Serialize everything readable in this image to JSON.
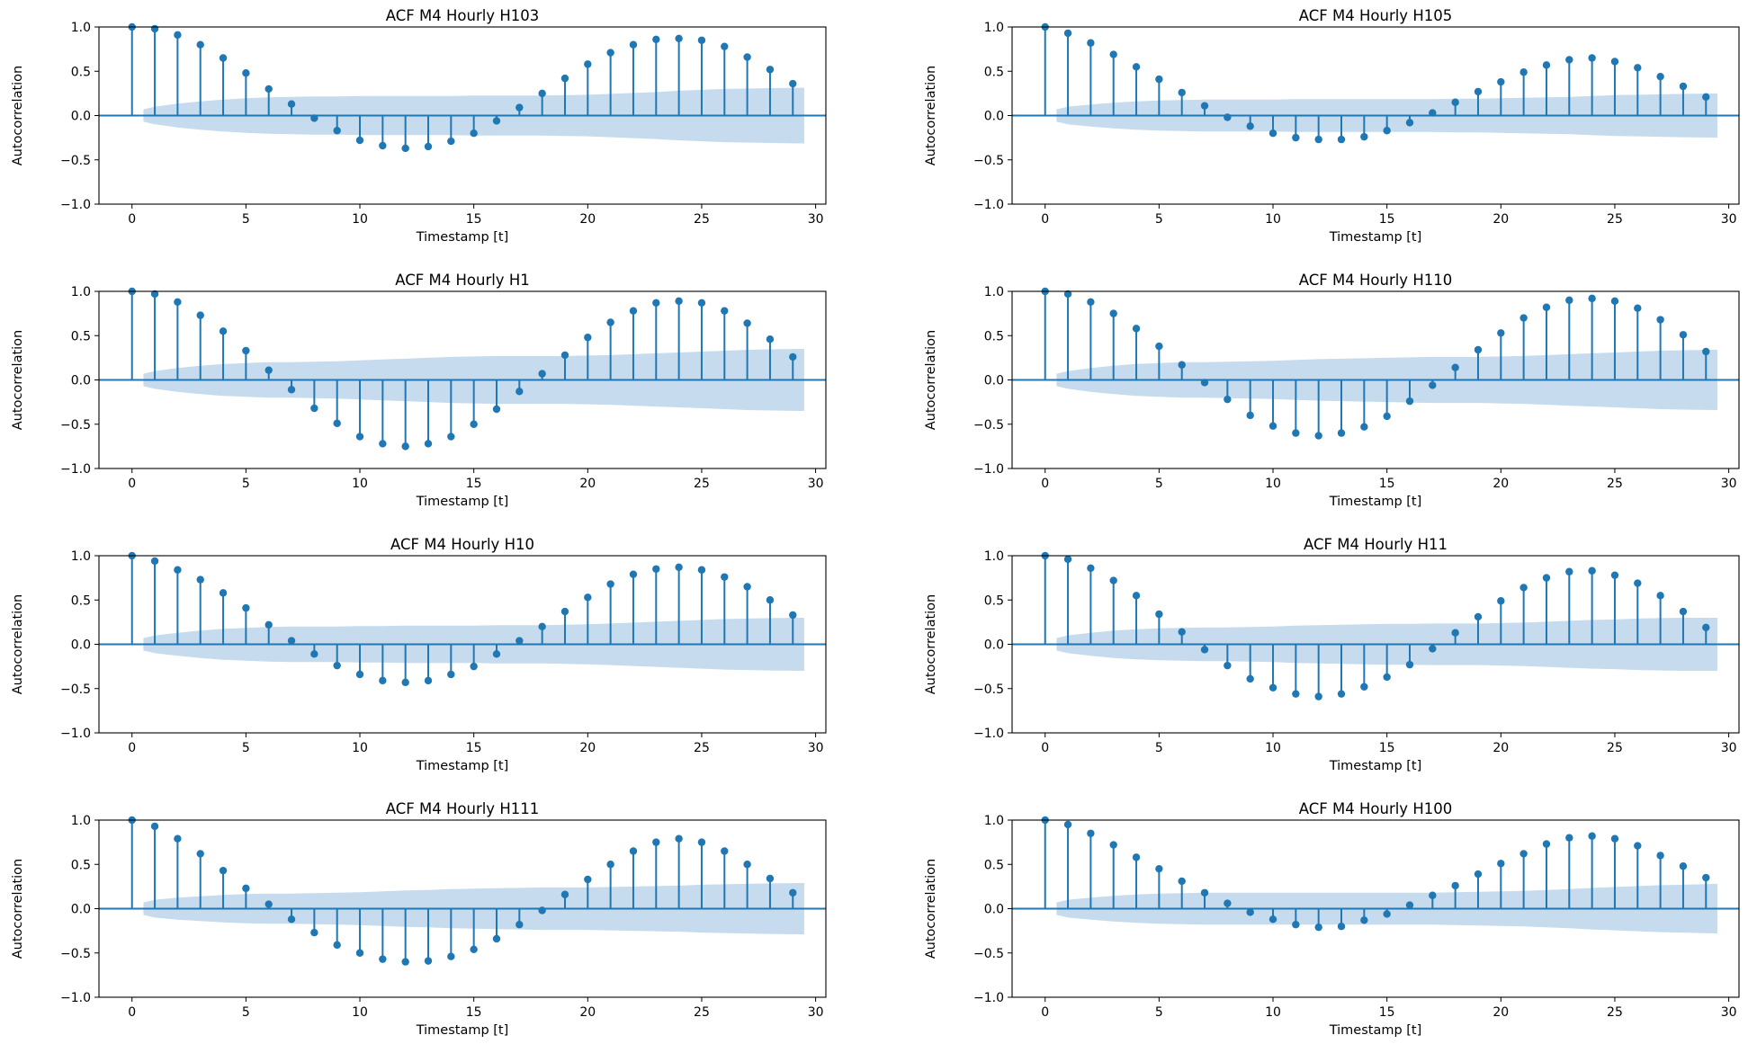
{
  "figure": {
    "stem_color": "#1f77b4",
    "band_color": "#c6dbed"
  },
  "chart_data": [
    {
      "type": "stem",
      "title": "ACF M4 Hourly H103",
      "xlabel": "Timestamp [t]",
      "ylabel": "Autocorrelation",
      "xlim": [
        -1.45,
        30.45
      ],
      "ylim": [
        -1.0,
        1.0
      ],
      "xticks": [
        "0",
        "5",
        "10",
        "15",
        "20",
        "25",
        "30"
      ],
      "yticks": [
        "−1.0",
        "−0.5",
        "0.0",
        "0.5",
        "1.0"
      ],
      "lags": [
        0,
        1,
        2,
        3,
        4,
        5,
        6,
        7,
        8,
        9,
        10,
        11,
        12,
        13,
        14,
        15,
        16,
        17,
        18,
        19,
        20,
        21,
        22,
        23,
        24,
        25,
        26,
        27,
        28,
        29
      ],
      "values": [
        1.0,
        0.98,
        0.91,
        0.8,
        0.65,
        0.48,
        0.3,
        0.13,
        -0.03,
        -0.17,
        -0.28,
        -0.34,
        -0.37,
        -0.35,
        -0.29,
        -0.2,
        -0.06,
        0.09,
        0.25,
        0.42,
        0.58,
        0.71,
        0.8,
        0.86,
        0.87,
        0.85,
        0.78,
        0.66,
        0.52,
        0.36
      ],
      "confidence_band": [
        0.07,
        0.1,
        0.135,
        0.16,
        0.18,
        0.195,
        0.205,
        0.21,
        0.215,
        0.215,
        0.22,
        0.22,
        0.22,
        0.22,
        0.22,
        0.225,
        0.225,
        0.225,
        0.225,
        0.23,
        0.235,
        0.245,
        0.255,
        0.265,
        0.28,
        0.29,
        0.3,
        0.305,
        0.31,
        0.315
      ]
    },
    {
      "type": "stem",
      "title": "ACF M4 Hourly H105",
      "xlabel": "Timestamp [t]",
      "ylabel": "Autocorrelation",
      "xlim": [
        -1.45,
        30.45
      ],
      "ylim": [
        -1.0,
        1.0
      ],
      "xticks": [
        "0",
        "5",
        "10",
        "15",
        "20",
        "25",
        "30"
      ],
      "yticks": [
        "−1.0",
        "−0.5",
        "0.0",
        "0.5",
        "1.0"
      ],
      "lags": [
        0,
        1,
        2,
        3,
        4,
        5,
        6,
        7,
        8,
        9,
        10,
        11,
        12,
        13,
        14,
        15,
        16,
        17,
        18,
        19,
        20,
        21,
        22,
        23,
        24,
        25,
        26,
        27,
        28,
        29
      ],
      "values": [
        1.0,
        0.93,
        0.82,
        0.69,
        0.55,
        0.41,
        0.26,
        0.11,
        -0.02,
        -0.12,
        -0.2,
        -0.25,
        -0.27,
        -0.27,
        -0.24,
        -0.17,
        -0.08,
        0.03,
        0.15,
        0.27,
        0.38,
        0.49,
        0.57,
        0.63,
        0.65,
        0.61,
        0.54,
        0.44,
        0.33,
        0.21
      ],
      "confidence_band": [
        0.07,
        0.1,
        0.125,
        0.145,
        0.16,
        0.17,
        0.175,
        0.18,
        0.18,
        0.18,
        0.18,
        0.185,
        0.185,
        0.185,
        0.185,
        0.185,
        0.185,
        0.185,
        0.19,
        0.19,
        0.195,
        0.2,
        0.205,
        0.21,
        0.22,
        0.23,
        0.235,
        0.24,
        0.245,
        0.25
      ]
    },
    {
      "type": "stem",
      "title": "ACF M4 Hourly H1",
      "xlabel": "Timestamp [t]",
      "ylabel": "Autocorrelation",
      "xlim": [
        -1.45,
        30.45
      ],
      "ylim": [
        -1.0,
        1.0
      ],
      "xticks": [
        "0",
        "5",
        "10",
        "15",
        "20",
        "25",
        "30"
      ],
      "yticks": [
        "−1.0",
        "−0.5",
        "0.0",
        "0.5",
        "1.0"
      ],
      "lags": [
        0,
        1,
        2,
        3,
        4,
        5,
        6,
        7,
        8,
        9,
        10,
        11,
        12,
        13,
        14,
        15,
        16,
        17,
        18,
        19,
        20,
        21,
        22,
        23,
        24,
        25,
        26,
        27,
        28,
        29
      ],
      "values": [
        1.0,
        0.97,
        0.88,
        0.73,
        0.55,
        0.33,
        0.11,
        -0.11,
        -0.32,
        -0.49,
        -0.64,
        -0.72,
        -0.75,
        -0.72,
        -0.64,
        -0.5,
        -0.33,
        -0.13,
        0.07,
        0.28,
        0.48,
        0.65,
        0.78,
        0.87,
        0.89,
        0.87,
        0.78,
        0.64,
        0.46,
        0.26
      ],
      "confidence_band": [
        0.07,
        0.1,
        0.135,
        0.16,
        0.18,
        0.19,
        0.2,
        0.2,
        0.205,
        0.21,
        0.22,
        0.23,
        0.24,
        0.25,
        0.26,
        0.265,
        0.27,
        0.27,
        0.27,
        0.27,
        0.275,
        0.28,
        0.29,
        0.3,
        0.31,
        0.32,
        0.33,
        0.34,
        0.345,
        0.35
      ]
    },
    {
      "type": "stem",
      "title": "ACF M4 Hourly H110",
      "xlabel": "Timestamp [t]",
      "ylabel": "Autocorrelation",
      "xlim": [
        -1.45,
        30.45
      ],
      "ylim": [
        -1.0,
        1.0
      ],
      "xticks": [
        "0",
        "5",
        "10",
        "15",
        "20",
        "25",
        "30"
      ],
      "yticks": [
        "−1.0",
        "−0.5",
        "0.0",
        "0.5",
        "1.0"
      ],
      "lags": [
        0,
        1,
        2,
        3,
        4,
        5,
        6,
        7,
        8,
        9,
        10,
        11,
        12,
        13,
        14,
        15,
        16,
        17,
        18,
        19,
        20,
        21,
        22,
        23,
        24,
        25,
        26,
        27,
        28,
        29
      ],
      "values": [
        1.0,
        0.97,
        0.88,
        0.75,
        0.58,
        0.38,
        0.17,
        -0.03,
        -0.22,
        -0.4,
        -0.52,
        -0.6,
        -0.63,
        -0.6,
        -0.53,
        -0.41,
        -0.24,
        -0.06,
        0.14,
        0.34,
        0.53,
        0.7,
        0.82,
        0.9,
        0.92,
        0.89,
        0.81,
        0.68,
        0.51,
        0.32
      ],
      "confidence_band": [
        0.07,
        0.1,
        0.135,
        0.16,
        0.18,
        0.19,
        0.2,
        0.2,
        0.205,
        0.21,
        0.215,
        0.225,
        0.235,
        0.24,
        0.245,
        0.25,
        0.255,
        0.26,
        0.26,
        0.26,
        0.265,
        0.27,
        0.28,
        0.29,
        0.3,
        0.31,
        0.32,
        0.33,
        0.335,
        0.34
      ]
    },
    {
      "type": "stem",
      "title": "ACF M4 Hourly H10",
      "xlabel": "Timestamp [t]",
      "ylabel": "Autocorrelation",
      "xlim": [
        -1.45,
        30.45
      ],
      "ylim": [
        -1.0,
        1.0
      ],
      "xticks": [
        "0",
        "5",
        "10",
        "15",
        "20",
        "25",
        "30"
      ],
      "yticks": [
        "−1.0",
        "−0.5",
        "0.0",
        "0.5",
        "1.0"
      ],
      "lags": [
        0,
        1,
        2,
        3,
        4,
        5,
        6,
        7,
        8,
        9,
        10,
        11,
        12,
        13,
        14,
        15,
        16,
        17,
        18,
        19,
        20,
        21,
        22,
        23,
        24,
        25,
        26,
        27,
        28,
        29
      ],
      "values": [
        1.0,
        0.94,
        0.84,
        0.73,
        0.58,
        0.41,
        0.22,
        0.04,
        -0.11,
        -0.24,
        -0.34,
        -0.41,
        -0.43,
        -0.41,
        -0.34,
        -0.25,
        -0.11,
        0.04,
        0.2,
        0.37,
        0.53,
        0.68,
        0.79,
        0.85,
        0.87,
        0.84,
        0.76,
        0.65,
        0.5,
        0.33
      ],
      "confidence_band": [
        0.07,
        0.1,
        0.13,
        0.155,
        0.175,
        0.185,
        0.195,
        0.2,
        0.2,
        0.2,
        0.205,
        0.205,
        0.21,
        0.21,
        0.21,
        0.21,
        0.215,
        0.215,
        0.215,
        0.22,
        0.225,
        0.235,
        0.245,
        0.255,
        0.265,
        0.275,
        0.285,
        0.29,
        0.295,
        0.3
      ]
    },
    {
      "type": "stem",
      "title": "ACF M4 Hourly H11",
      "xlabel": "Timestamp [t]",
      "ylabel": "Autocorrelation",
      "xlim": [
        -1.45,
        30.45
      ],
      "ylim": [
        -1.0,
        1.0
      ],
      "xticks": [
        "0",
        "5",
        "10",
        "15",
        "20",
        "25",
        "30"
      ],
      "yticks": [
        "−1.0",
        "−0.5",
        "0.0",
        "0.5",
        "1.0"
      ],
      "lags": [
        0,
        1,
        2,
        3,
        4,
        5,
        6,
        7,
        8,
        9,
        10,
        11,
        12,
        13,
        14,
        15,
        16,
        17,
        18,
        19,
        20,
        21,
        22,
        23,
        24,
        25,
        26,
        27,
        28,
        29
      ],
      "values": [
        1.0,
        0.96,
        0.86,
        0.72,
        0.55,
        0.34,
        0.14,
        -0.06,
        -0.24,
        -0.39,
        -0.49,
        -0.56,
        -0.59,
        -0.56,
        -0.48,
        -0.37,
        -0.23,
        -0.05,
        0.13,
        0.31,
        0.49,
        0.64,
        0.75,
        0.82,
        0.83,
        0.78,
        0.69,
        0.55,
        0.37,
        0.19
      ],
      "confidence_band": [
        0.07,
        0.1,
        0.13,
        0.155,
        0.17,
        0.18,
        0.185,
        0.19,
        0.19,
        0.195,
        0.2,
        0.21,
        0.215,
        0.22,
        0.225,
        0.23,
        0.23,
        0.235,
        0.235,
        0.235,
        0.24,
        0.245,
        0.255,
        0.265,
        0.275,
        0.28,
        0.29,
        0.295,
        0.3,
        0.3
      ]
    },
    {
      "type": "stem",
      "title": "ACF M4 Hourly H111",
      "xlabel": "Timestamp [t]",
      "ylabel": "Autocorrelation",
      "xlim": [
        -1.45,
        30.45
      ],
      "ylim": [
        -1.0,
        1.0
      ],
      "xticks": [
        "0",
        "5",
        "10",
        "15",
        "20",
        "25",
        "30"
      ],
      "yticks": [
        "−1.0",
        "−0.5",
        "0.0",
        "0.5",
        "1.0"
      ],
      "lags": [
        0,
        1,
        2,
        3,
        4,
        5,
        6,
        7,
        8,
        9,
        10,
        11,
        12,
        13,
        14,
        15,
        16,
        17,
        18,
        19,
        20,
        21,
        22,
        23,
        24,
        25,
        26,
        27,
        28,
        29
      ],
      "values": [
        1.0,
        0.93,
        0.79,
        0.62,
        0.43,
        0.23,
        0.05,
        -0.12,
        -0.27,
        -0.41,
        -0.5,
        -0.57,
        -0.6,
        -0.59,
        -0.54,
        -0.46,
        -0.34,
        -0.18,
        -0.02,
        0.16,
        0.33,
        0.5,
        0.65,
        0.75,
        0.79,
        0.75,
        0.65,
        0.5,
        0.34,
        0.18
      ],
      "confidence_band": [
        0.07,
        0.1,
        0.125,
        0.14,
        0.155,
        0.165,
        0.17,
        0.17,
        0.175,
        0.18,
        0.185,
        0.195,
        0.205,
        0.21,
        0.22,
        0.225,
        0.23,
        0.235,
        0.24,
        0.24,
        0.24,
        0.245,
        0.25,
        0.255,
        0.26,
        0.27,
        0.275,
        0.28,
        0.285,
        0.29
      ]
    },
    {
      "type": "stem",
      "title": "ACF M4 Hourly H100",
      "xlabel": "Timestamp [t]",
      "ylabel": "Autocorrelation",
      "xlim": [
        -1.45,
        30.45
      ],
      "ylim": [
        -1.0,
        1.0
      ],
      "xticks": [
        "0",
        "5",
        "10",
        "15",
        "20",
        "25",
        "30"
      ],
      "yticks": [
        "−1.0",
        "−0.5",
        "0.0",
        "0.5",
        "1.0"
      ],
      "lags": [
        0,
        1,
        2,
        3,
        4,
        5,
        6,
        7,
        8,
        9,
        10,
        11,
        12,
        13,
        14,
        15,
        16,
        17,
        18,
        19,
        20,
        21,
        22,
        23,
        24,
        25,
        26,
        27,
        28,
        29
      ],
      "values": [
        1.0,
        0.95,
        0.85,
        0.72,
        0.58,
        0.45,
        0.31,
        0.18,
        0.06,
        -0.04,
        -0.12,
        -0.18,
        -0.21,
        -0.2,
        -0.13,
        -0.06,
        0.04,
        0.15,
        0.26,
        0.39,
        0.51,
        0.62,
        0.73,
        0.8,
        0.82,
        0.79,
        0.71,
        0.6,
        0.48,
        0.35
      ],
      "confidence_band": [
        0.07,
        0.1,
        0.125,
        0.145,
        0.16,
        0.17,
        0.175,
        0.18,
        0.18,
        0.18,
        0.18,
        0.18,
        0.18,
        0.18,
        0.18,
        0.18,
        0.18,
        0.18,
        0.185,
        0.19,
        0.195,
        0.2,
        0.21,
        0.22,
        0.235,
        0.245,
        0.255,
        0.265,
        0.27,
        0.28
      ]
    }
  ]
}
